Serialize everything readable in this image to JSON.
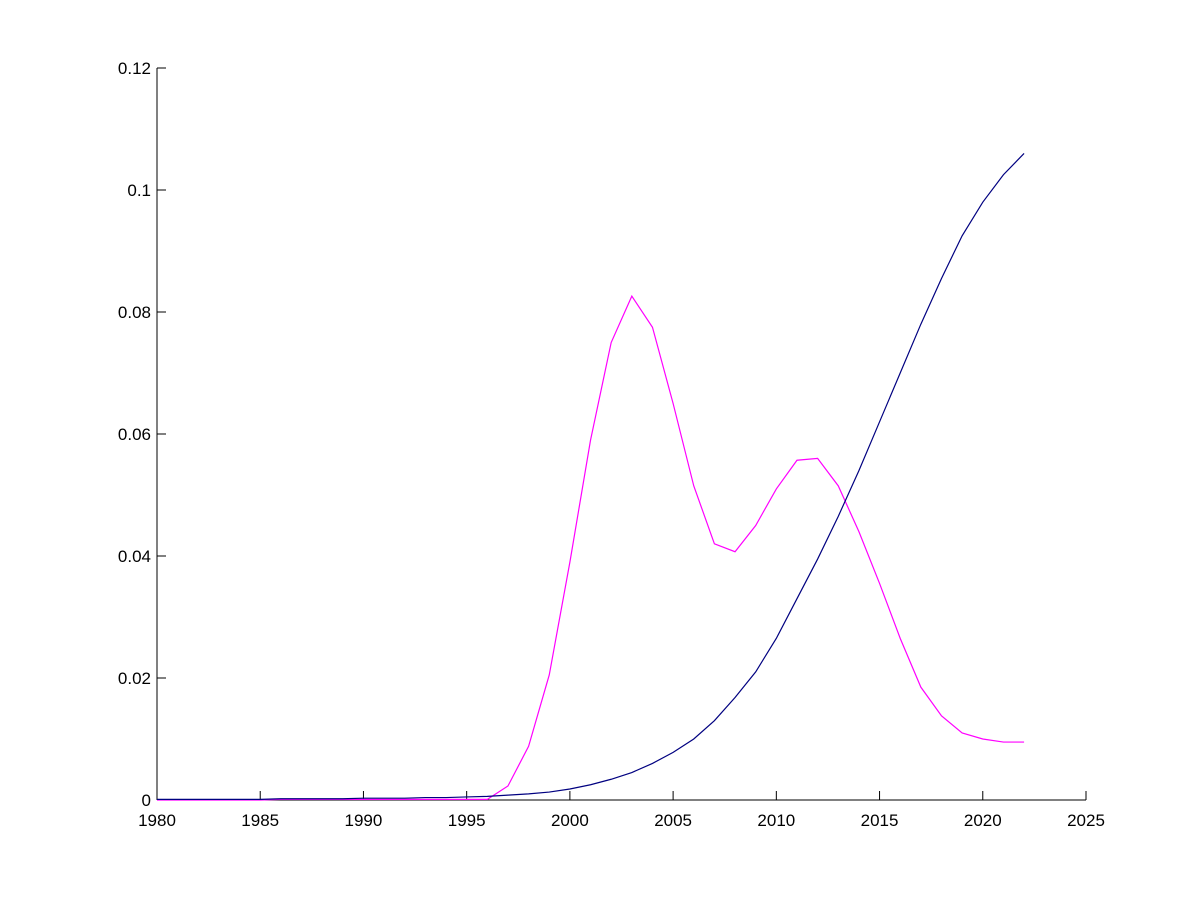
{
  "chart_data": {
    "type": "line",
    "x": [
      1980,
      1981,
      1982,
      1983,
      1984,
      1985,
      1986,
      1987,
      1988,
      1989,
      1990,
      1991,
      1992,
      1993,
      1994,
      1995,
      1996,
      1997,
      1998,
      1999,
      2000,
      2001,
      2002,
      2003,
      2004,
      2005,
      2006,
      2007,
      2008,
      2009,
      2010,
      2011,
      2012,
      2013,
      2014,
      2015,
      2016,
      2017,
      2018,
      2019,
      2020,
      2021,
      2022
    ],
    "series": [
      {
        "color": "#ff00ff",
        "values": [
          0,
          0,
          0,
          0,
          0,
          0,
          0.0001,
          0.0001,
          0.0001,
          0.0001,
          0.0001,
          0.0001,
          0.0001,
          0.0001,
          0.0001,
          0.0001,
          0.0001,
          0.0023,
          0.0088,
          0.0205,
          0.039,
          0.059,
          0.075,
          0.0826,
          0.0775,
          0.065,
          0.0515,
          0.042,
          0.0407,
          0.045,
          0.051,
          0.0557,
          0.056,
          0.0515,
          0.044,
          0.0355,
          0.0265,
          0.0185,
          0.0138,
          0.011,
          0.01,
          0.0095,
          0.0095
        ]
      },
      {
        "color": "#000080",
        "values": [
          0.0001,
          0.0001,
          0.0001,
          0.0001,
          0.0001,
          0.0001,
          0.0002,
          0.0002,
          0.0002,
          0.0002,
          0.0003,
          0.0003,
          0.0003,
          0.0004,
          0.0004,
          0.0005,
          0.0006,
          0.0008,
          0.001,
          0.0013,
          0.0018,
          0.0025,
          0.0034,
          0.0045,
          0.006,
          0.0078,
          0.01,
          0.013,
          0.0168,
          0.021,
          0.0265,
          0.033,
          0.0395,
          0.0465,
          0.054,
          0.062,
          0.07,
          0.078,
          0.0855,
          0.0925,
          0.098,
          0.1025,
          0.106
        ]
      }
    ],
    "xlim": [
      1980,
      2025
    ],
    "xticks": [
      1980,
      1985,
      1990,
      1995,
      2000,
      2005,
      2010,
      2015,
      2020,
      2025
    ],
    "ylim": [
      0,
      0.12
    ],
    "yticks": [
      0,
      0.02,
      0.04,
      0.06,
      0.08,
      0.1,
      0.12
    ]
  }
}
